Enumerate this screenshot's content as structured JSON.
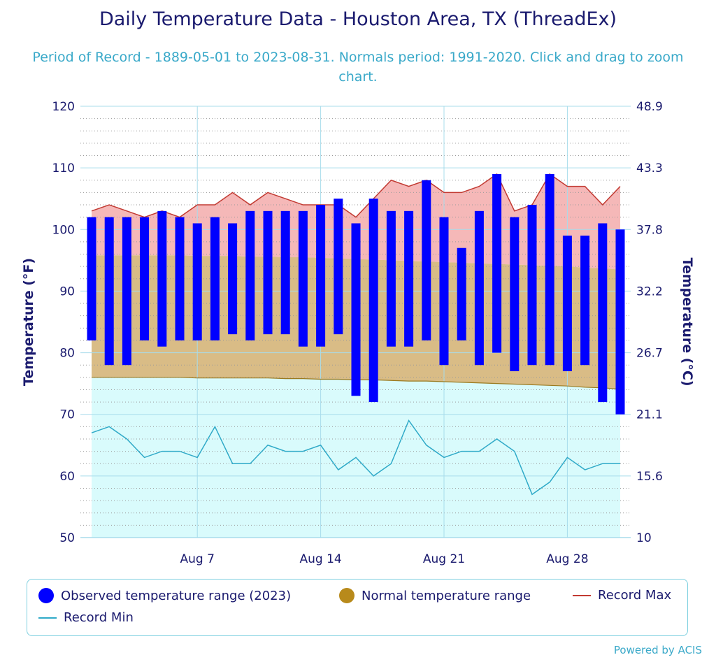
{
  "chart_data": {
    "type": "bar",
    "title": "Daily Temperature Data - Houston Area, TX (ThreadEx)",
    "subtitle": "Period of Record - 1889-05-01 to 2023-08-31. Normals period: 1991-2020. Click and drag to zoom chart.",
    "ylabel_left": "Temperature (°F)",
    "ylabel_right": "Temperature (°C)",
    "ylim": [
      50,
      120
    ],
    "yticks_left": [
      "120",
      "110",
      "100",
      "90",
      "80",
      "70",
      "60",
      "50"
    ],
    "yticks_left_values": [
      120,
      110,
      100,
      90,
      80,
      70,
      60,
      50
    ],
    "yticks_right": [
      "48.9",
      "43.3",
      "37.8",
      "32.2",
      "26.7",
      "21.1",
      "15.6",
      "10"
    ],
    "x_start_day": 1,
    "x_end_day": 31,
    "xtick_days": [
      7,
      14,
      21,
      28
    ],
    "xtick_labels": [
      "Aug 7",
      "Aug 14",
      "Aug 21",
      "Aug 28"
    ],
    "days": [
      1,
      2,
      3,
      4,
      5,
      6,
      7,
      8,
      9,
      10,
      11,
      12,
      13,
      14,
      15,
      16,
      17,
      18,
      19,
      20,
      21,
      22,
      23,
      24,
      25,
      26,
      27,
      28,
      29,
      30,
      31
    ],
    "observed_max": [
      102,
      102,
      102,
      102,
      103,
      102,
      101,
      102,
      101,
      103,
      103,
      103,
      103,
      104,
      105,
      101,
      105,
      103,
      103,
      108,
      102,
      97,
      103,
      109,
      102,
      104,
      109,
      99,
      99,
      101,
      100
    ],
    "observed_min": [
      82,
      78,
      78,
      82,
      81,
      82,
      82,
      82,
      83,
      82,
      83,
      83,
      81,
      81,
      83,
      73,
      72,
      81,
      81,
      82,
      78,
      82,
      78,
      80,
      77,
      78,
      78,
      77,
      78,
      72,
      70
    ],
    "normal_max": [
      95.8,
      95.8,
      95.8,
      95.8,
      95.8,
      95.8,
      95.7,
      95.7,
      95.7,
      95.6,
      95.6,
      95.5,
      95.5,
      95.4,
      95.3,
      95.2,
      95.1,
      95.0,
      94.9,
      94.8,
      94.7,
      94.6,
      94.5,
      94.4,
      94.3,
      94.2,
      94.1,
      94.0,
      93.8,
      93.7,
      93.5
    ],
    "normal_min": [
      76.0,
      76.0,
      76.0,
      76.0,
      76.0,
      76.0,
      75.9,
      75.9,
      75.9,
      75.9,
      75.9,
      75.8,
      75.8,
      75.7,
      75.7,
      75.6,
      75.6,
      75.5,
      75.4,
      75.4,
      75.3,
      75.2,
      75.1,
      75.0,
      74.9,
      74.8,
      74.7,
      74.6,
      74.4,
      74.3,
      74.1
    ],
    "record_max": [
      103,
      104,
      103,
      102,
      103,
      102,
      104,
      104,
      106,
      104,
      106,
      105,
      104,
      104,
      104,
      102,
      105,
      108,
      107,
      108,
      106,
      106,
      107,
      109,
      103,
      104,
      109,
      107,
      107,
      104,
      107
    ],
    "record_min": [
      67,
      68,
      66,
      63,
      64,
      64,
      63,
      68,
      62,
      62,
      65,
      64,
      64,
      65,
      61,
      63,
      60,
      62,
      69,
      65,
      63,
      64,
      64,
      66,
      64,
      57,
      59,
      63,
      61,
      62,
      62
    ],
    "legend": [
      {
        "label": "Observed temperature range (2023)",
        "color": "#0000ff",
        "shape": "dot"
      },
      {
        "label": "Normal temperature range",
        "color": "#b88a1b",
        "shape": "dot"
      },
      {
        "label": "Record Max",
        "color": "#c23a32",
        "shape": "line"
      },
      {
        "label": "Record Min",
        "color": "#30aac8",
        "shape": "line"
      }
    ],
    "colors": {
      "observed": "#0000ff",
      "normal_fill": "#d9bc86",
      "record_max_fill": "#f5b8b8",
      "record_min_fill": "#d9fbfc",
      "record_max_line": "#c23a32",
      "record_min_line": "#30aac8",
      "normal_min_line": "#9a7a20",
      "grid": "#a8dceb"
    }
  },
  "credit": "Powered by ACIS"
}
